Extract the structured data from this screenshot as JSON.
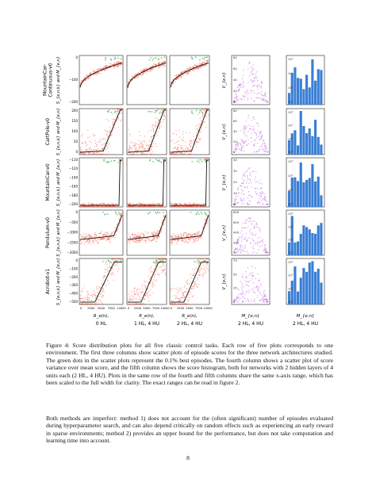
{
  "figure": {
    "row_labels": [
      "MountainCar-\nContinuous-v0",
      "CartPole-v0",
      "MountainCar-v0",
      "Pendulum-v0",
      "Acrobot-v1"
    ],
    "ylabel_scatter": "S_{e,n,k} and M_{e,n}",
    "ylabel_variance": "V_{e,n}",
    "column_titles": [
      "0 HL",
      "1 HL, 4 HU",
      "2 HL, 4 HU",
      "2 HL, 4 HU",
      "2 HL, 4 HU"
    ],
    "xlabel_scatter": "R_e(n),",
    "xlabel_variance": "M_{e,n}",
    "xlabel_hist": "M_{e,n}",
    "colors": {
      "scatter": "#f25a41",
      "best": "#5fbf6a",
      "mean": "#111111",
      "variance": "#b85ce0",
      "hist": "#3a7fd4"
    },
    "y_ticks": [
      [
        "0",
        "−100",
        "−200"
      ],
      [
        "200",
        "150",
        "100",
        "50",
        "0"
      ],
      [
        "−110",
        "−120",
        "−140",
        "−160",
        "−180",
        "−200"
      ],
      [
        "0",
        "−500",
        "−1000",
        "−1500",
        "−2000"
      ],
      [
        "0",
        "−100",
        "−200",
        "−300",
        "−400",
        "−500"
      ]
    ],
    "x_ticks_scatter": [
      "0",
      "2500",
      "5000",
      "7500",
      "10000"
    ],
    "variance_y_ticks": [
      [
        "80",
        "60",
        "40",
        "20",
        "0"
      ],
      [
        "80",
        "60",
        "40",
        "20",
        "0"
      ],
      [
        "40",
        "30",
        "20",
        "10",
        "0"
      ],
      [
        "800",
        "600",
        "400",
        "200",
        "0"
      ],
      [
        "75",
        "50",
        "25",
        "0"
      ]
    ],
    "hist_y_ticks": [
      "10³",
      "10²",
      "10¹",
      "10⁰"
    ]
  },
  "caption": "Figure 4:  Score distribution plots for all five classic control tasks. Each row of five plots corresponds to one environment. The first three columns show scatter plots of episode scores for the three network architectures studied. The green dots in the scatter plots represent the 0.1% best episodes. The fourth column shows a scatter plot of score variance over mean score, and the fifth column shows the score histogram, both for networks with 2 hidden layers of 4 units each (2 HL, 4 HU). Plots in the same row of the fourth and fifth columns share the same x-axis range, which has been scaled to the full width for clarity. The exact ranges can be read in figure 2.",
  "body_paragraph": "Both methods are imperfect: method 1) does not account for the (often significant) number of episodes evaluated during hyperparameter search, and can also depend critically on random effects such as experiencing an early reward in sparse environments; method 2) provides an upper bound for the performance, but does not take computation and learning time into account.",
  "page_number": "8"
}
